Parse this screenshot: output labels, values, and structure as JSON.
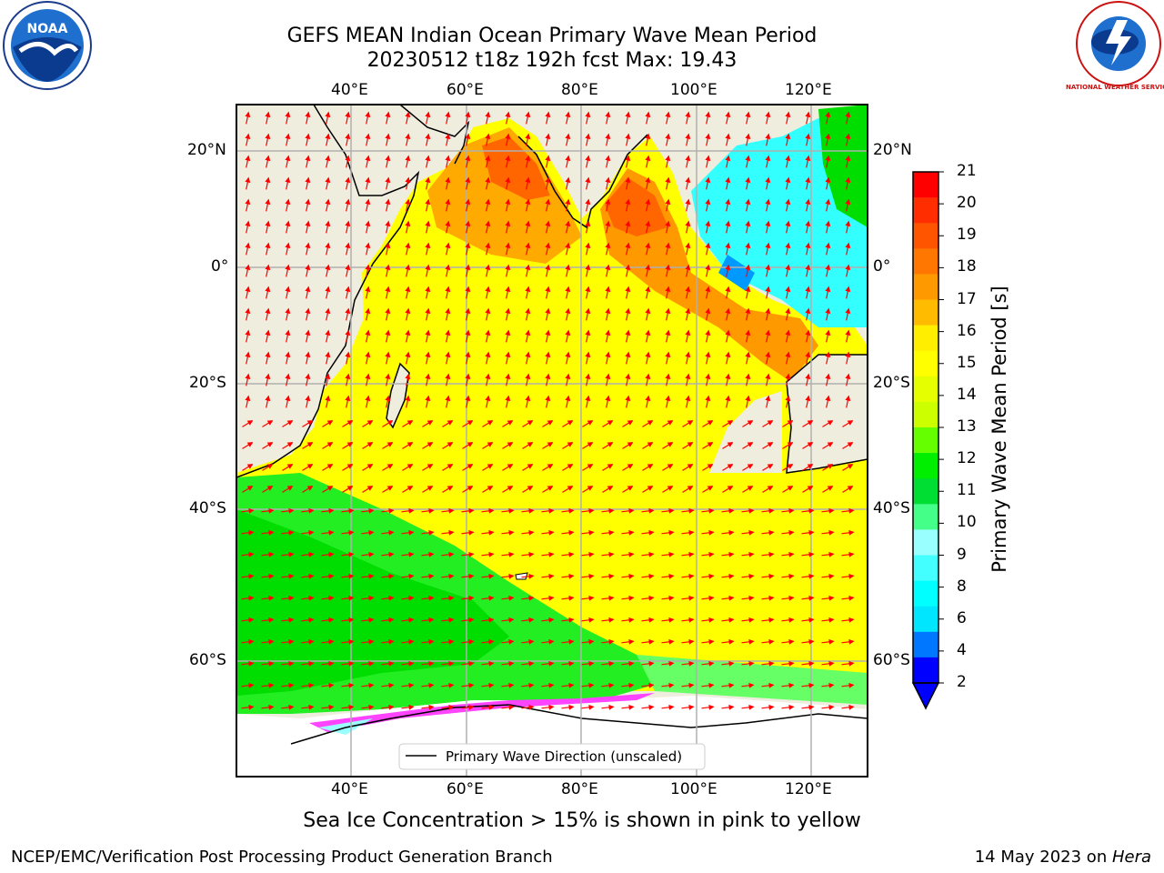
{
  "header": {
    "title_line1": "GEFS MEAN Indian Ocean Primary Wave Mean Period",
    "title_line2": "20230512 t18z 192h fcst   Max: 19.43"
  },
  "logos": {
    "left": {
      "icon": "noaa-logo",
      "text": "NOAA"
    },
    "right": {
      "icon": "nws-logo",
      "text": "NATIONAL WEATHER SERVICE"
    }
  },
  "map": {
    "lon_ticks_top": [
      "40°E",
      "60°E",
      "80°E",
      "100°E",
      "120°E"
    ],
    "lon_ticks_bottom": [
      "40°E",
      "60°E",
      "80°E",
      "100°E",
      "120°E"
    ],
    "lat_ticks_left": [
      "20°N",
      "0°",
      "20°S",
      "40°S",
      "60°S"
    ],
    "lat_ticks_right": [
      "20°N",
      "0°",
      "20°S",
      "40°S",
      "60°S"
    ],
    "lon_values": [
      40,
      60,
      80,
      100,
      120
    ],
    "lat_values": [
      20,
      0,
      -20,
      -40,
      -60
    ],
    "legend_label": "Primary Wave Direction (unscaled)"
  },
  "colorbar": {
    "label": "Primary Wave Mean Period [s]",
    "ticks": [
      "21",
      "20",
      "19",
      "18",
      "17",
      "16",
      "15",
      "14",
      "13",
      "12",
      "11",
      "10",
      "9",
      "8",
      "6",
      "4",
      "2"
    ],
    "colors": [
      "#ff0000",
      "#ff2d00",
      "#ff5500",
      "#ff7700",
      "#ff9900",
      "#ffbb00",
      "#ffee00",
      "#ffff00",
      "#e6ff00",
      "#ccff00",
      "#66ff00",
      "#00ee00",
      "#00dd33",
      "#44ff88",
      "#99ffff",
      "#44ffff",
      "#00ffff",
      "#00e6ff",
      "#0077ff",
      "#0000ff"
    ]
  },
  "caption": "Sea Ice Concentration > 15% is shown in pink to yellow",
  "footer": {
    "left": "NCEP/EMC/Verification Post Processing Product Generation Branch",
    "right_prefix": "14 May 2023 on ",
    "right_host": "Hera"
  }
}
